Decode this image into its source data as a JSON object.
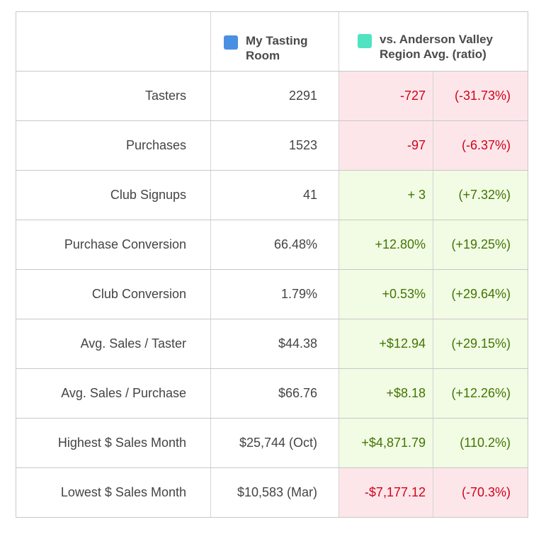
{
  "header": {
    "mine_label": "My Tasting Room",
    "region_label": "vs. Anderson Valley Region Avg. (ratio)"
  },
  "colors": {
    "mine_swatch": "#4a90e2",
    "region_swatch": "#50e3c2",
    "negative_text": "#d0021b",
    "negative_bg": "#fde6e9",
    "positive_text": "#417505",
    "positive_bg": "#f2fbe3"
  },
  "rows": [
    {
      "label": "Tasters",
      "mine": "2291",
      "diff": "-727",
      "ratio": "(-31.73%)",
      "trend": "negative"
    },
    {
      "label": "Purchases",
      "mine": "1523",
      "diff": "-97",
      "ratio": "(-6.37%)",
      "trend": "negative"
    },
    {
      "label": "Club Signups",
      "mine": "41",
      "diff": "+ 3",
      "ratio": "(+7.32%)",
      "trend": "positive"
    },
    {
      "label": "Purchase Conversion",
      "mine": "66.48%",
      "diff": "+12.80%",
      "ratio": "(+19.25%)",
      "trend": "positive"
    },
    {
      "label": "Club Conversion",
      "mine": "1.79%",
      "diff": "+0.53%",
      "ratio": "(+29.64%)",
      "trend": "positive"
    },
    {
      "label": "Avg. Sales / Taster",
      "mine": "$44.38",
      "diff": "+$12.94",
      "ratio": "(+29.15%)",
      "trend": "positive"
    },
    {
      "label": "Avg. Sales / Purchase",
      "mine": "$66.76",
      "diff": "+$8.18",
      "ratio": "(+12.26%)",
      "trend": "positive"
    },
    {
      "label": "Highest $ Sales Month",
      "mine": "$25,744 (Oct)",
      "diff": "+$4,871.79",
      "ratio": "(110.2%)",
      "trend": "positive"
    },
    {
      "label": "Lowest $ Sales Month",
      "mine": "$10,583 (Mar)",
      "diff": "-$7,177.12",
      "ratio": "(-70.3%)",
      "trend": "negative"
    }
  ]
}
